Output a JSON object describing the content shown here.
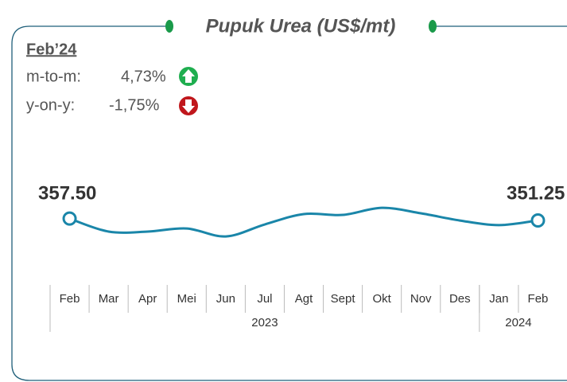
{
  "chart_data": {
    "type": "line",
    "title": "Pupuk Urea (US$/mt)",
    "period": "Feb’24",
    "changes": [
      {
        "label": "m-to-m:",
        "value": "4,73%"
      },
      {
        "label": "y-on-y:",
        "value": "-1,75%"
      }
    ],
    "categories": [
      "Feb",
      "Mar",
      "Apr",
      "Mei",
      "Jun",
      "Jul",
      "Agt",
      "Sept",
      "Okt",
      "Nov",
      "Des",
      "Jan",
      "Feb"
    ],
    "x_groups": [
      {
        "label": "2023",
        "count": 11
      },
      {
        "label": "2024",
        "count": 2
      }
    ],
    "values": [
      357.5,
      313.4,
      313.4,
      324,
      297,
      337.7,
      372.9,
      370,
      394,
      375.5,
      351,
      335.4,
      351.25
    ],
    "value_labels": [
      "357.50",
      null,
      null,
      null,
      null,
      null,
      null,
      null,
      null,
      null,
      null,
      null,
      "351.25"
    ],
    "color": "#1a86a9",
    "ylim": [
      250,
      450
    ]
  }
}
